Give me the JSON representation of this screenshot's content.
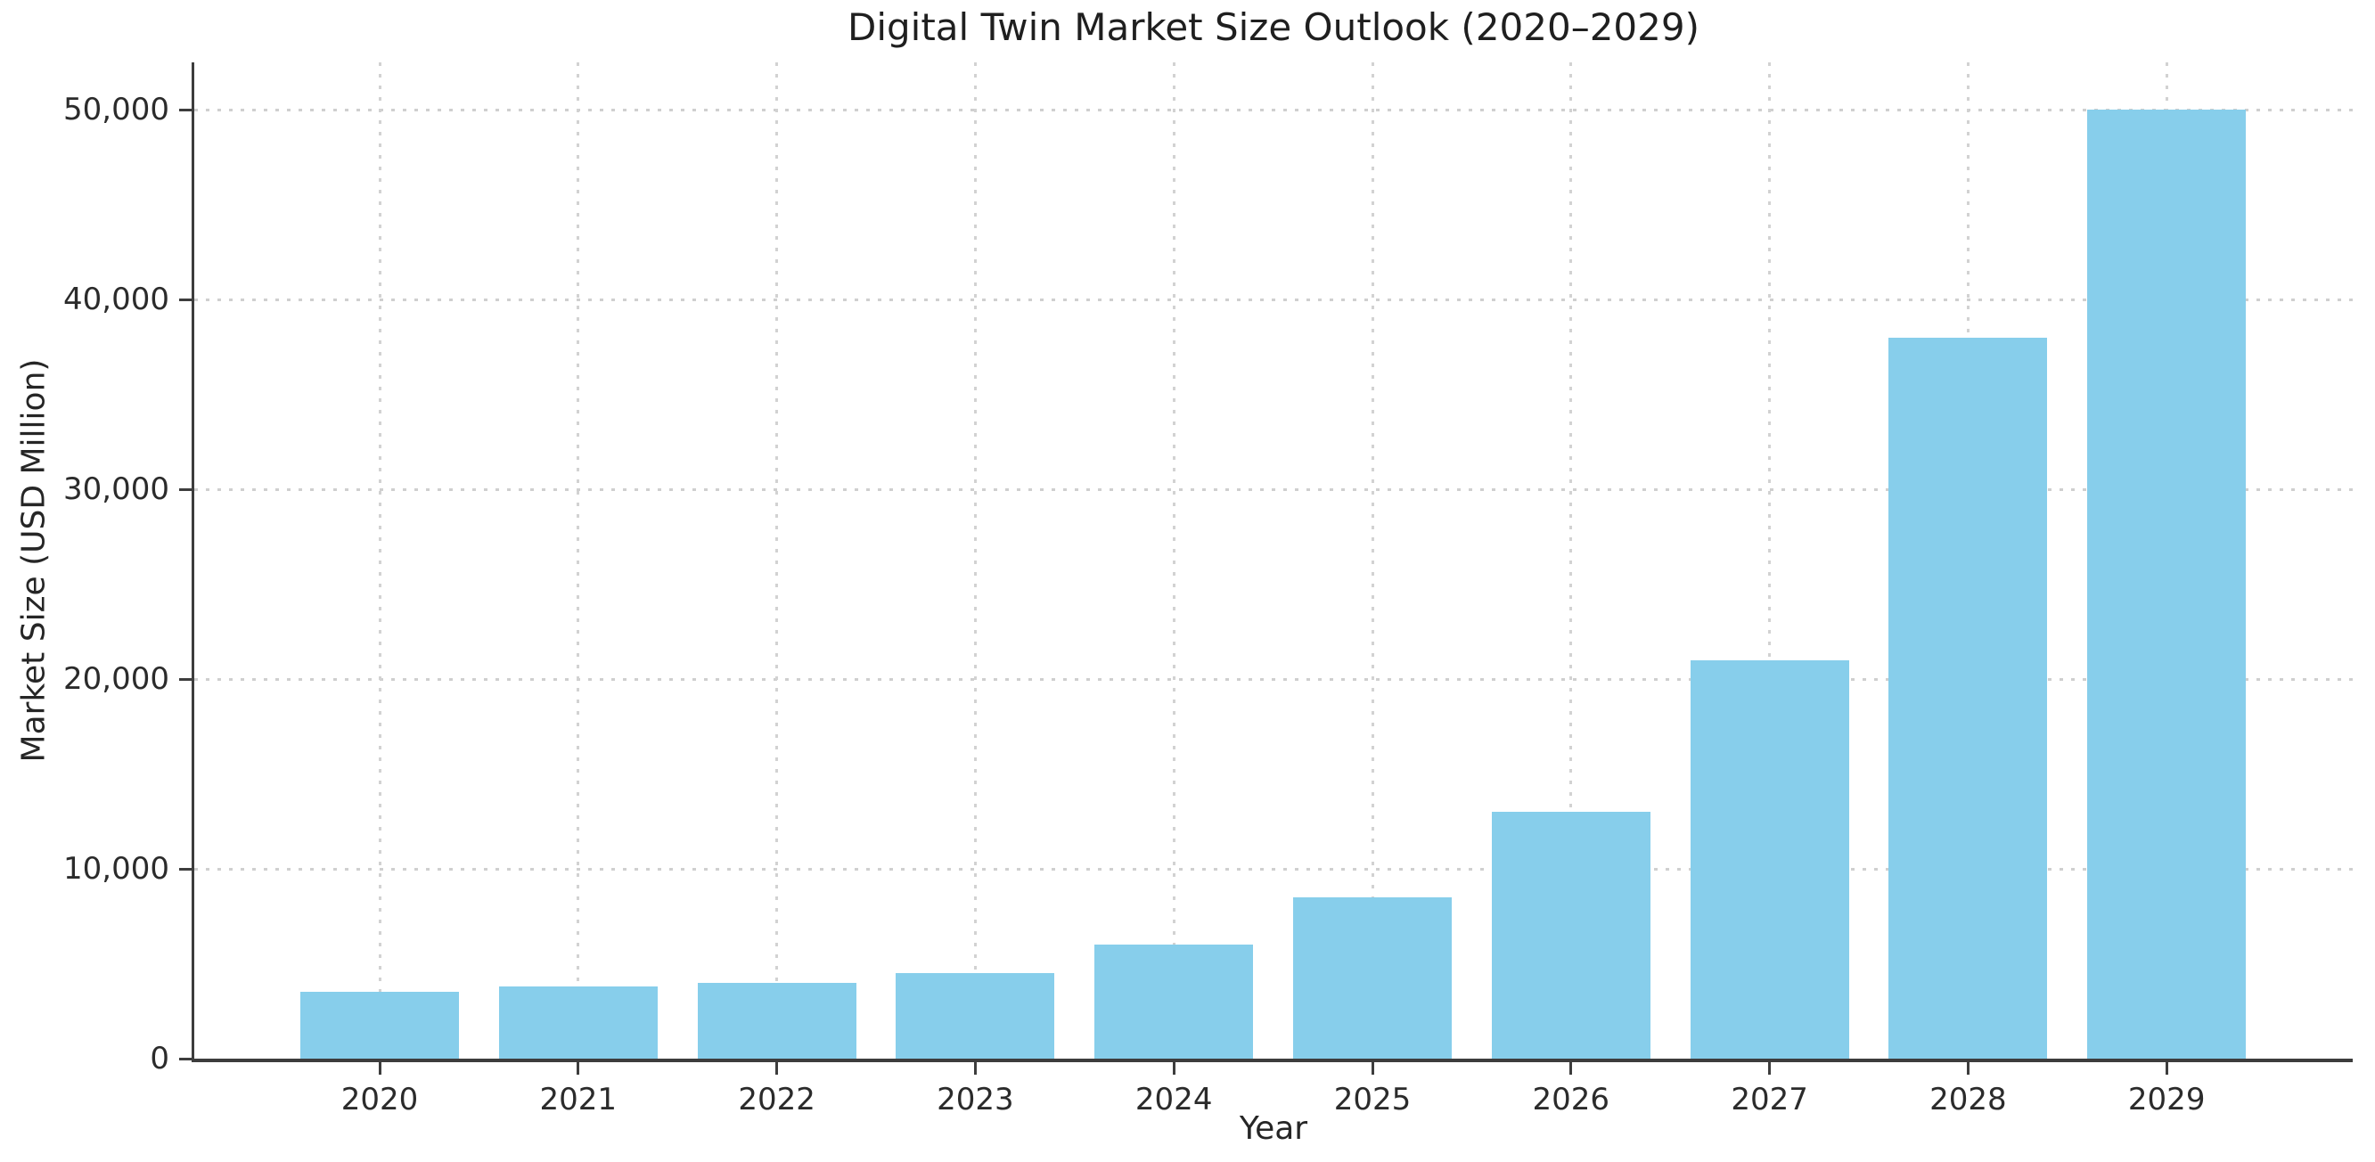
{
  "chart_data": {
    "type": "bar",
    "title": "Digital Twin Market Size Outlook (2020–2029)",
    "xlabel": "Year",
    "ylabel": "Market Size (USD Million)",
    "categories": [
      "2020",
      "2021",
      "2022",
      "2023",
      "2024",
      "2025",
      "2026",
      "2027",
      "2028",
      "2029"
    ],
    "values": [
      3500,
      3800,
      4000,
      4500,
      6000,
      8500,
      13000,
      21000,
      38000,
      50000
    ],
    "yticks": [
      0,
      10000,
      20000,
      30000,
      40000,
      50000
    ],
    "ytick_labels": [
      "0",
      "10,000",
      "20,000",
      "30,000",
      "40,000",
      "50,000"
    ],
    "ylim": [
      0,
      52500
    ],
    "grid": "dotted",
    "legend_position": "none",
    "colors": {
      "bar_fill": "#87CEEB",
      "axis": "#3d3d3d",
      "grid": "#cfcfcf",
      "text": "#262626",
      "background": "#ffffff"
    }
  }
}
